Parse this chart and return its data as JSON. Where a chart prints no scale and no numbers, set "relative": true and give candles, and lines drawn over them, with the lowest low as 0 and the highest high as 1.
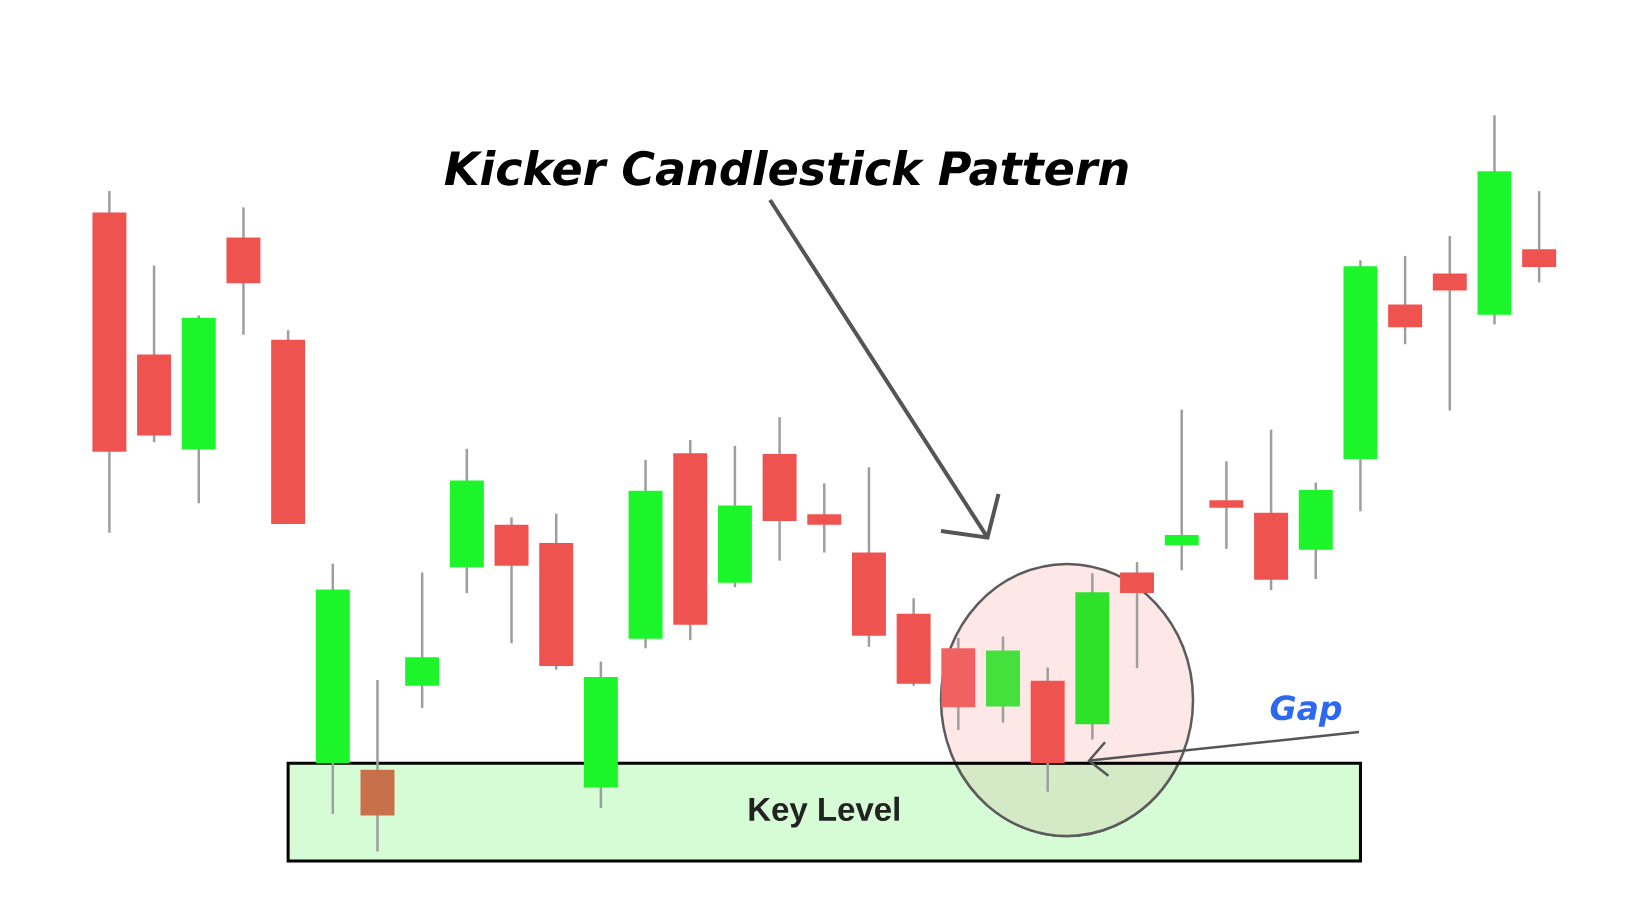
{
  "chart_data": {
    "type": "candlestick",
    "title": "Kicker Candlestick Pattern",
    "relative": true,
    "categories": [
      null,
      null,
      null,
      null,
      null,
      null,
      null,
      null,
      null,
      null,
      null,
      null,
      null,
      null,
      null,
      null,
      null,
      null,
      null,
      null,
      null,
      null,
      null,
      null,
      null,
      null,
      null,
      null,
      null,
      null,
      null,
      null,
      null
    ],
    "ohlc": [
      [
        0.868,
        0.897,
        0.433,
        0.543
      ],
      [
        0.675,
        0.796,
        0.556,
        0.565
      ],
      [
        0.546,
        0.728,
        0.473,
        0.725
      ],
      [
        0.834,
        0.875,
        0.702,
        0.772
      ],
      [
        0.695,
        0.708,
        0.445,
        0.445
      ],
      [
        0.12,
        0.391,
        0.051,
        0.356
      ],
      [
        0.111,
        0.233,
        0,
        0.049
      ],
      [
        0.225,
        0.379,
        0.195,
        0.264
      ],
      [
        0.386,
        0.547,
        0.351,
        0.504
      ],
      [
        0.444,
        0.454,
        0.283,
        0.388
      ],
      [
        0.419,
        0.459,
        0.247,
        0.252
      ],
      [
        0.087,
        0.258,
        0.059,
        0.237
      ],
      [
        0.289,
        0.532,
        0.276,
        0.49
      ],
      [
        0.541,
        0.559,
        0.287,
        0.308
      ],
      [
        0.365,
        0.551,
        0.359,
        0.47
      ],
      [
        0.54,
        0.59,
        0.395,
        0.449
      ],
      [
        0.458,
        0.5,
        0.406,
        0.444
      ],
      [
        0.406,
        0.522,
        0.278,
        0.293
      ],
      [
        0.323,
        0.344,
        0.225,
        0.228
      ],
      [
        0.276,
        0.29,
        0.165,
        0.196
      ],
      [
        0.197,
        0.292,
        0.175,
        0.273
      ],
      [
        0.232,
        0.25,
        0.081,
        0.12
      ],
      [
        0.173,
        0.378,
        0.152,
        0.352
      ],
      [
        0.379,
        0.393,
        0.249,
        0.351
      ],
      [
        0.416,
        0.6,
        0.382,
        0.43
      ],
      [
        0.477,
        0.53,
        0.411,
        0.467
      ],
      [
        0.46,
        0.573,
        0.355,
        0.369
      ],
      [
        0.41,
        0.501,
        0.37,
        0.491
      ],
      [
        0.533,
        0.803,
        0.462,
        0.795
      ],
      [
        0.743,
        0.809,
        0.689,
        0.712
      ],
      [
        0.785,
        0.836,
        0.599,
        0.762
      ],
      [
        0.729,
        1,
        0.716,
        0.924
      ],
      [
        0.818,
        0.897,
        0.773,
        0.794
      ]
    ],
    "colors": [
      "#ef5350",
      "#ef5350",
      "#1df52b",
      "#ef5350",
      "#ef5350",
      "#1df52b",
      "#c8704a",
      "#1df52b",
      "#1df52b",
      "#ef5350",
      "#ef5350",
      "#1df52b",
      "#1df52b",
      "#ef5350",
      "#1df52b",
      "#ef5350",
      "#ef5350",
      "#ef5350",
      "#ef5350",
      "#f06262",
      "#44e03c",
      "#ef5350",
      "#2ee22a",
      "#ef5350",
      "#1df52b",
      "#ef5350",
      "#ef5350",
      "#1df52b",
      "#1df52b",
      "#ef5350",
      "#ef5350",
      "#1df52b",
      "#ef5350"
    ],
    "bands": [
      {
        "axis": "y",
        "from": -0.013,
        "to": 0.12,
        "label": "Key Level",
        "color": "#d6fcd6"
      }
    ],
    "annotations": [
      "Gap"
    ]
  }
}
